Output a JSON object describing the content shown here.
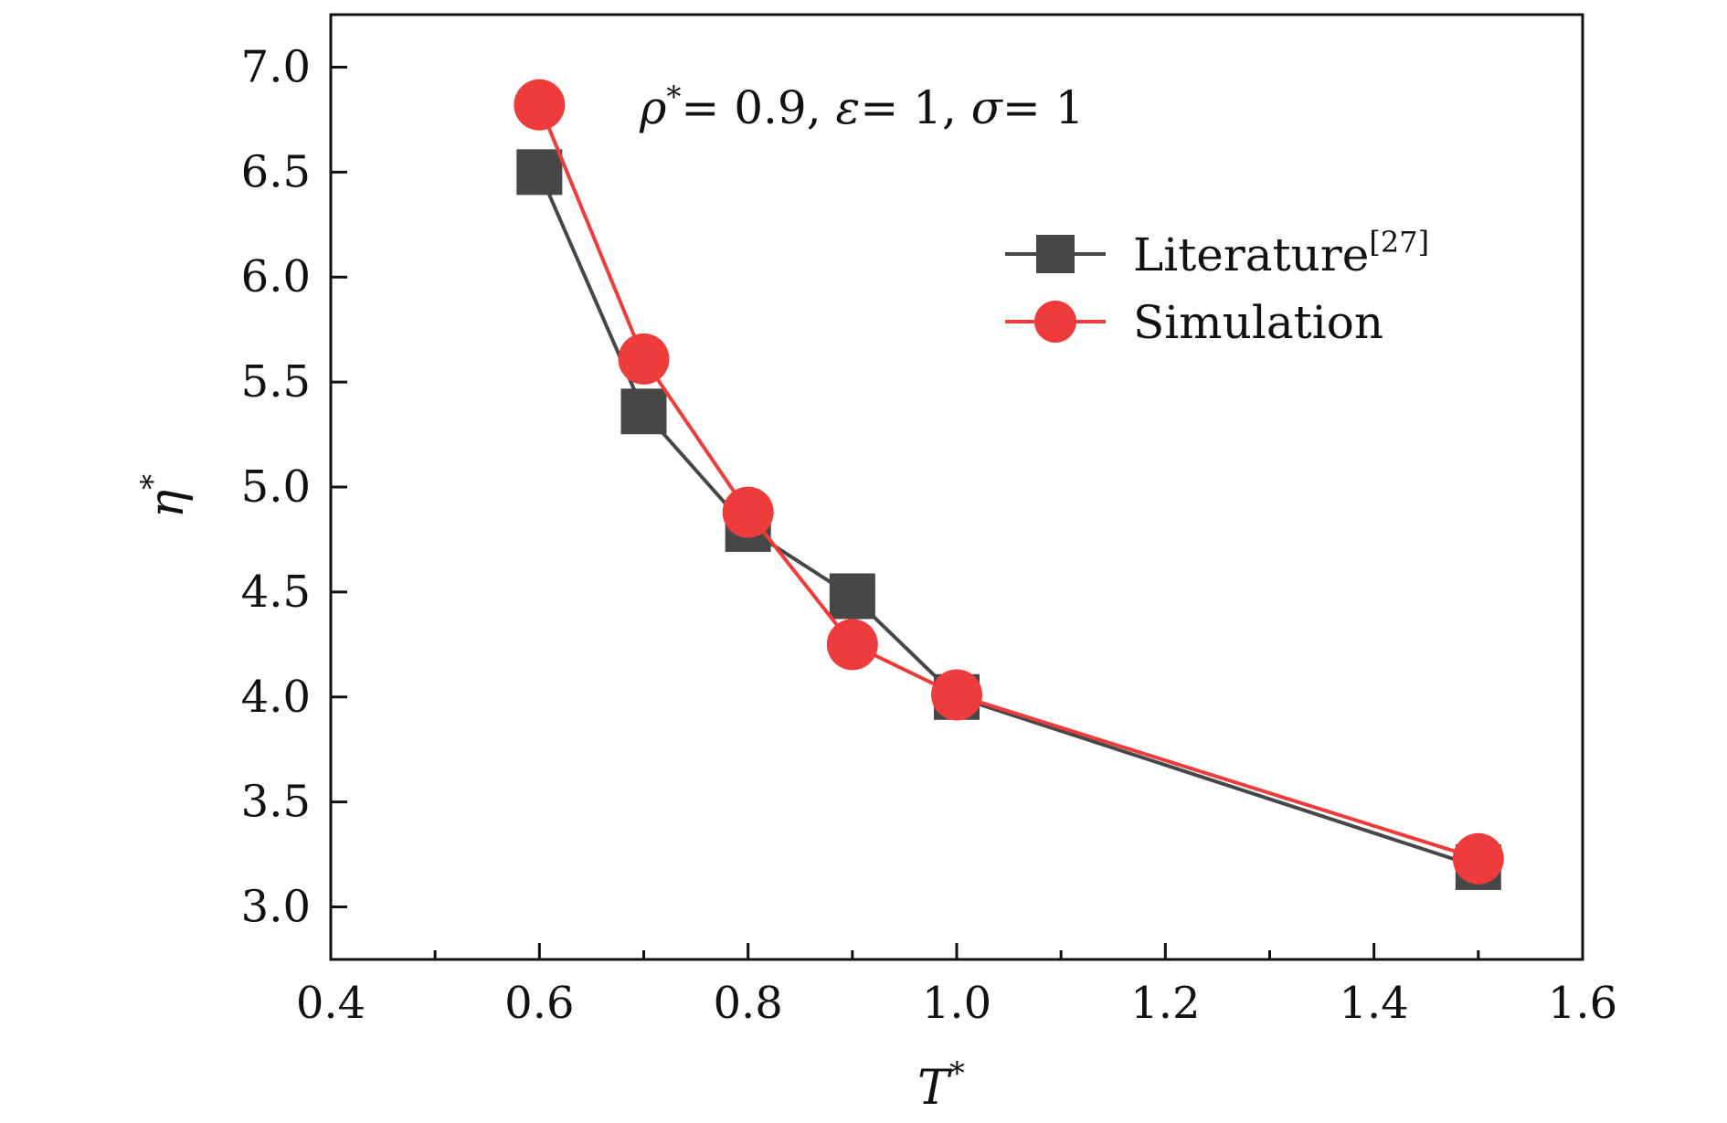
{
  "chart_data": {
    "type": "line",
    "title": "",
    "xlabel": "T",
    "xlabel_sup": "*",
    "ylabel": "η",
    "ylabel_sup": "*",
    "xlim": [
      0.4,
      1.6
    ],
    "ylim": [
      2.75,
      7.25
    ],
    "x_major_ticks": [
      0.4,
      0.6,
      0.8,
      1.0,
      1.2,
      1.4,
      1.6
    ],
    "x_tick_labels": [
      "0.4",
      "0.6",
      "0.8",
      "1.0",
      "1.2",
      "1.4",
      "1.6"
    ],
    "x_minor_ticks": [
      0.5,
      0.7,
      0.9,
      1.1,
      1.3,
      1.5
    ],
    "y_major_ticks": [
      3.0,
      3.5,
      4.0,
      4.5,
      5.0,
      5.5,
      6.0,
      6.5,
      7.0
    ],
    "y_tick_labels": [
      "3.0",
      "3.5",
      "4.0",
      "4.5",
      "5.0",
      "5.5",
      "6.0",
      "6.5",
      "7.0"
    ],
    "grid": false,
    "legend_position": "upper-right",
    "annotation": {
      "rho": "ρ",
      "rho_sup": "*",
      "rho_rest": "= 0.9, ",
      "eps": "ε",
      "eps_rest": "= 1, ",
      "sigma": "σ",
      "sigma_rest": "= 1"
    },
    "series": [
      {
        "name": "Literature",
        "name_sup": "[27]",
        "marker": "square",
        "color": "#474747",
        "x": [
          0.6,
          0.7,
          0.8,
          0.9,
          1.0,
          1.5
        ],
        "y": [
          6.5,
          5.36,
          4.8,
          4.48,
          4.0,
          3.19
        ]
      },
      {
        "name": "Simulation",
        "name_sup": "",
        "marker": "circle",
        "color": "#ee3b3b",
        "x": [
          0.6,
          0.7,
          0.8,
          0.9,
          1.0,
          1.5
        ],
        "y": [
          6.82,
          5.61,
          4.88,
          4.25,
          4.01,
          3.23
        ]
      }
    ]
  }
}
